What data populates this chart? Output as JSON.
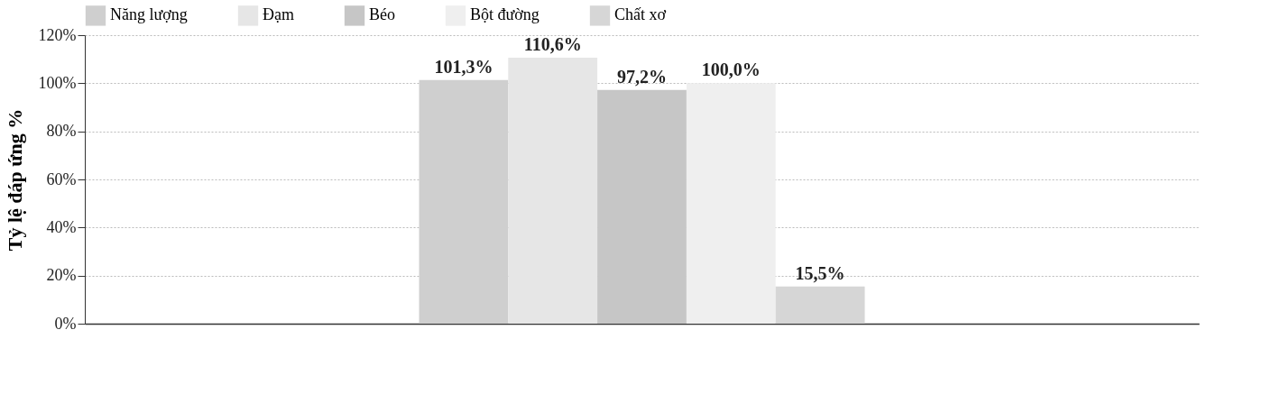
{
  "chart_data": {
    "type": "bar",
    "ylabel": "Tỷ lệ đáp ứng %",
    "categories": [
      null
    ],
    "series": [
      {
        "name": "Năng lượng",
        "color": "#cfcfcf",
        "values": [
          101.3
        ],
        "value_labels": [
          "101,3%"
        ]
      },
      {
        "name": "Đạm",
        "color": "#e6e6e6",
        "values": [
          110.6
        ],
        "value_labels": [
          "110,6%"
        ]
      },
      {
        "name": "Béo",
        "color": "#c6c6c6",
        "values": [
          97.2
        ],
        "value_labels": [
          "97,2%"
        ]
      },
      {
        "name": "Bột đường",
        "color": "#efefef",
        "values": [
          100.0
        ],
        "value_labels": [
          "100,0%"
        ]
      },
      {
        "name": "Chất xơ",
        "color": "#d6d6d6",
        "values": [
          15.5
        ],
        "value_labels": [
          "15,5%"
        ]
      }
    ],
    "ylim": [
      0,
      120
    ],
    "yticks": [
      {
        "value": 0,
        "label": "0%"
      },
      {
        "value": 20,
        "label": "20%"
      },
      {
        "value": 40,
        "label": "40%"
      },
      {
        "value": 60,
        "label": "60%"
      },
      {
        "value": 80,
        "label": "80%"
      },
      {
        "value": 100,
        "label": "100%"
      },
      {
        "value": 120,
        "label": "120%"
      }
    ],
    "grid": "y",
    "legend": "top"
  }
}
